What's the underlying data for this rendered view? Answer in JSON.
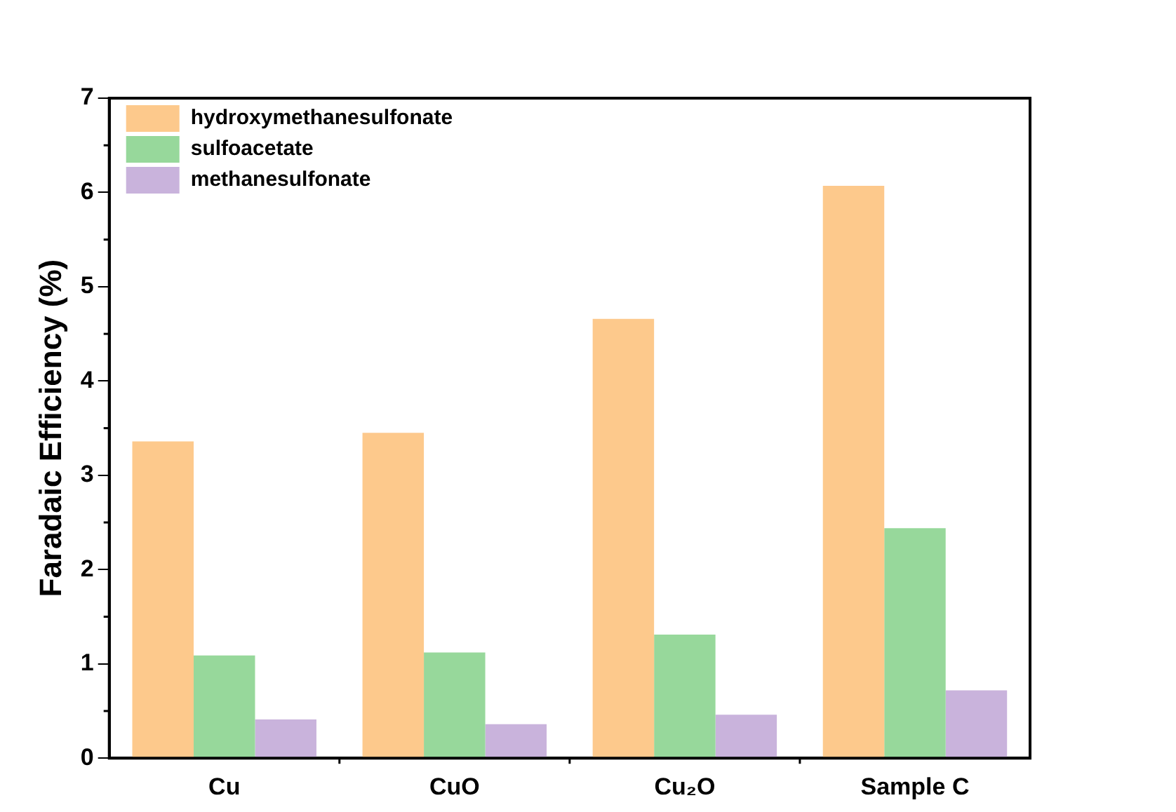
{
  "chart_data": {
    "type": "bar",
    "ylabel": "Faradaic Efficiency (%)",
    "categories": [
      "Cu",
      "CuO",
      "Cu₂O",
      "Sample C"
    ],
    "series": [
      {
        "name": "hydroxymethanesulfonate",
        "color": "#fdc98c",
        "values": [
          3.36,
          3.45,
          4.66,
          6.07
        ]
      },
      {
        "name": "sulfoacetate",
        "color": "#97d89b",
        "values": [
          1.09,
          1.12,
          1.31,
          2.44
        ]
      },
      {
        "name": "methanesulfonate",
        "color": "#c9b3dc",
        "values": [
          0.41,
          0.36,
          0.46,
          0.72
        ]
      }
    ],
    "ylim": [
      0,
      7
    ],
    "yticks": [
      0,
      1,
      2,
      3,
      4,
      5,
      6,
      7
    ],
    "grid": false,
    "legend": "top left"
  }
}
